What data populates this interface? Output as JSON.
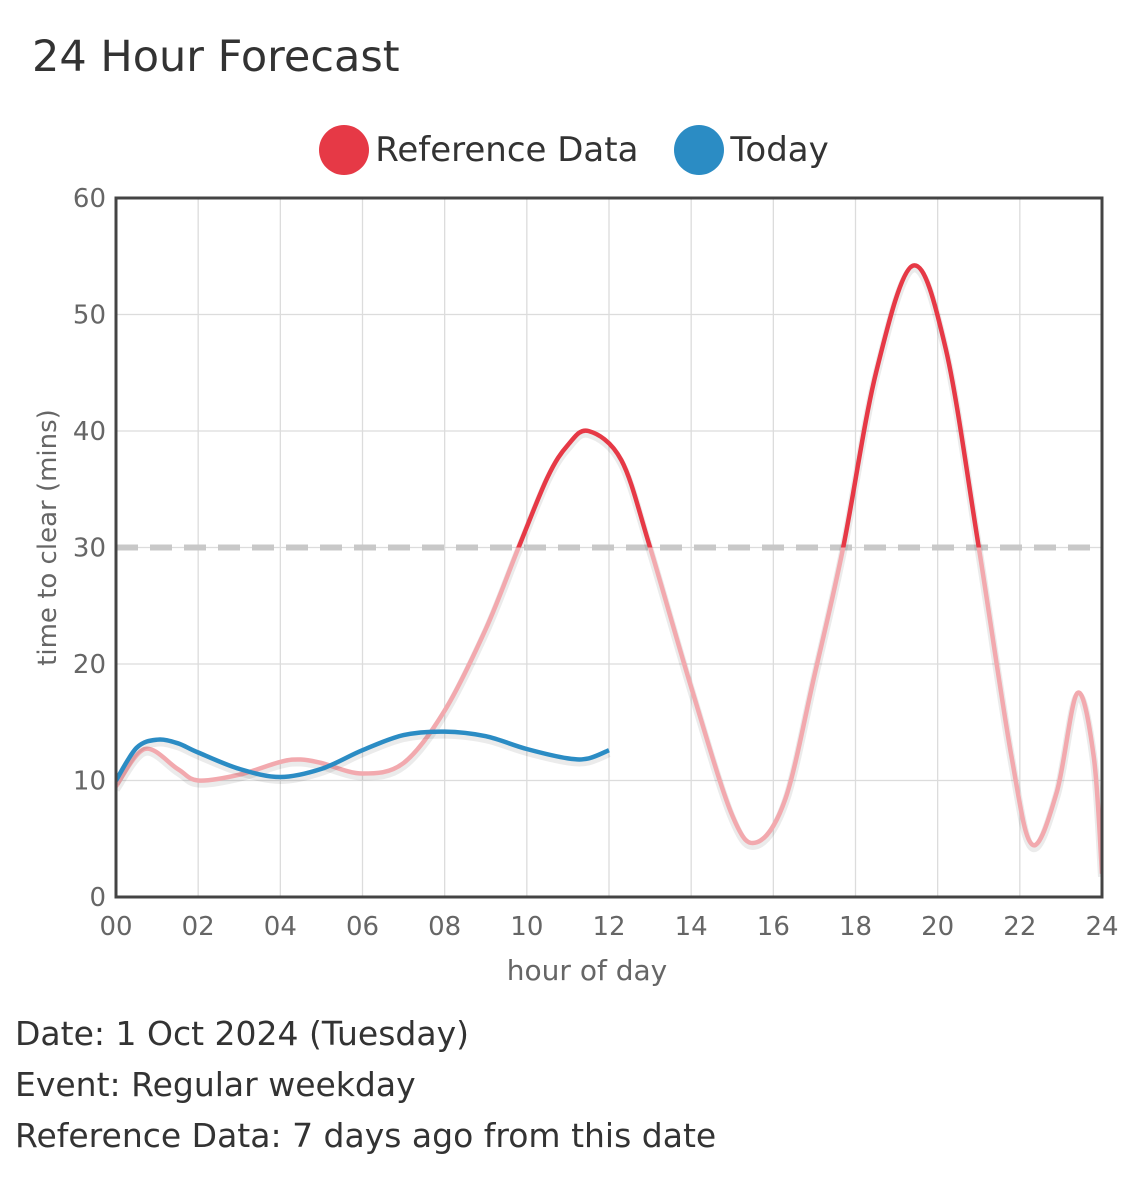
{
  "title": "24 Hour Forecast",
  "legend": [
    {
      "label": "Reference Data",
      "color": "#e63946"
    },
    {
      "label": "Today",
      "color": "#2b8cc4"
    }
  ],
  "info": {
    "date": "Date: 1 Oct 2024 (Tuesday)",
    "event": "Event: Regular weekday",
    "reference": "Reference Data: 7 days ago from this date"
  },
  "chart_data": {
    "type": "line",
    "xlabel": "hour of day",
    "ylabel": "time to clear (mins)",
    "xlim": [
      0,
      24
    ],
    "ylim": [
      0,
      60
    ],
    "x_ticks": [
      "00",
      "02",
      "04",
      "06",
      "08",
      "10",
      "12",
      "14",
      "16",
      "18",
      "20",
      "22",
      "24"
    ],
    "y_ticks": [
      "0",
      "10",
      "20",
      "30",
      "40",
      "50",
      "60"
    ],
    "threshold": 30,
    "grid": true,
    "legend_position": "top-center",
    "series": [
      {
        "name": "Reference Data",
        "color": "#e63946",
        "faded_color": "#f2a9ae",
        "x": [
          0,
          0.7,
          1.5,
          2,
          3,
          4,
          4.5,
          5,
          6,
          7,
          8,
          9,
          9.8,
          10.5,
          11,
          11.5,
          12.3,
          13,
          14,
          15,
          15.6,
          16.3,
          17,
          17.7,
          18.5,
          19.4,
          20.2,
          21,
          21.8,
          22.3,
          22.9,
          23.4,
          23.8,
          24
        ],
        "y": [
          9.5,
          12.7,
          11,
          10,
          10.5,
          11.6,
          11.8,
          11.5,
          10.6,
          11.5,
          16,
          23,
          30,
          36,
          38.8,
          40,
          37.5,
          30,
          18,
          7,
          4.7,
          8.5,
          19,
          30,
          45,
          54.2,
          47,
          30,
          12,
          4.5,
          9,
          17.5,
          12,
          2
        ]
      },
      {
        "name": "Today",
        "color": "#2b8cc4",
        "x": [
          0,
          0.5,
          1,
          1.5,
          2,
          3,
          4,
          5,
          6,
          7,
          8,
          9,
          10,
          11,
          11.5,
          12
        ],
        "y": [
          10,
          12.8,
          13.5,
          13.2,
          12.4,
          11,
          10.3,
          11,
          12.6,
          13.9,
          14.2,
          13.8,
          12.7,
          11.9,
          11.9,
          12.6
        ]
      }
    ]
  }
}
